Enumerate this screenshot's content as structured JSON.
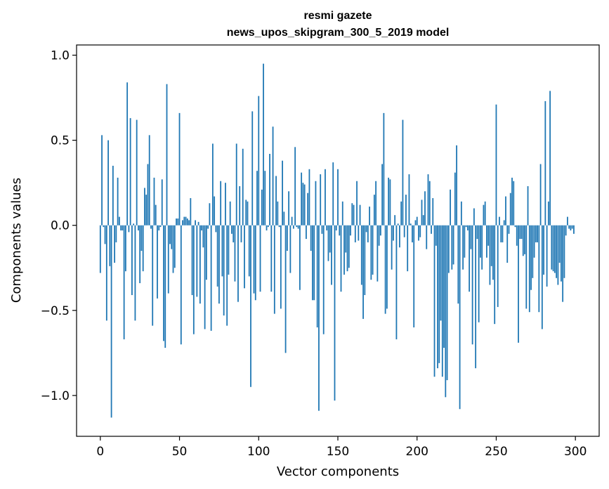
{
  "chart_data": {
    "type": "bar",
    "title": "resmi gazete",
    "subtitle": "news_upos_skipgram_300_5_2019 model",
    "xlabel": "Vector components",
    "ylabel": "Components values",
    "xlim": [
      -15,
      315
    ],
    "ylim": [
      -1.24,
      1.06
    ],
    "xticks": [
      0,
      50,
      100,
      150,
      200,
      250,
      300
    ],
    "xtick_labels": [
      "0",
      "50",
      "100",
      "150",
      "200",
      "250",
      "300"
    ],
    "yticks": [
      -1.0,
      -0.5,
      0.0,
      0.5,
      1.0
    ],
    "ytick_labels": [
      "−1.0",
      "−0.5",
      "0.0",
      "0.5",
      "1.0"
    ],
    "grid": false,
    "bar_color": "#1f77b4",
    "x": "0..299 (vector component index)",
    "values": [
      -0.28,
      0.53,
      -0.01,
      -0.11,
      -0.56,
      0.5,
      -0.24,
      -1.13,
      0.35,
      -0.22,
      -0.1,
      0.28,
      0.05,
      -0.03,
      -0.03,
      -0.67,
      -0.27,
      0.84,
      -0.04,
      0.63,
      -0.41,
      0.01,
      -0.56,
      0.62,
      -0.03,
      -0.34,
      -0.15,
      -0.27,
      0.22,
      0.18,
      0.36,
      0.53,
      -0.02,
      -0.59,
      0.28,
      0.12,
      -0.43,
      -0.03,
      -0.01,
      0.27,
      -0.68,
      -0.72,
      0.83,
      -0.4,
      -0.11,
      -0.14,
      -0.28,
      -0.25,
      0.04,
      0.04,
      0.66,
      -0.7,
      0.03,
      0.05,
      0.05,
      0.04,
      0.03,
      0.16,
      -0.41,
      -0.64,
      0.03,
      -0.42,
      0.02,
      -0.46,
      -0.03,
      -0.13,
      -0.61,
      -0.32,
      -0.02,
      0.13,
      -0.62,
      0.48,
      0.17,
      -0.04,
      -0.36,
      -0.46,
      0.26,
      -0.3,
      -0.53,
      0.25,
      -0.59,
      -0.29,
      0.14,
      -0.05,
      -0.1,
      -0.33,
      0.48,
      -0.45,
      0.23,
      -0.1,
      0.45,
      -0.37,
      0.15,
      0.14,
      -0.3,
      -0.95,
      0.67,
      -0.4,
      -0.44,
      0.32,
      0.76,
      -0.39,
      0.21,
      0.95,
      0.32,
      -0.03,
      -0.01,
      0.42,
      -0.39,
      0.58,
      -0.52,
      0.29,
      0.14,
      -0.01,
      -0.49,
      0.38,
      0.08,
      -0.75,
      -0.15,
      0.2,
      -0.28,
      0.05,
      -0.02,
      0.46,
      -0.01,
      -0.02,
      -0.38,
      0.31,
      0.25,
      0.24,
      -0.08,
      0.19,
      0.33,
      -0.15,
      -0.44,
      -0.44,
      0.26,
      -0.6,
      -1.09,
      0.3,
      -0.05,
      -0.64,
      0.33,
      -0.03,
      -0.21,
      -0.16,
      -0.35,
      0.37,
      -1.03,
      -0.03,
      0.33,
      -0.06,
      -0.39,
      0.14,
      -0.29,
      -0.16,
      -0.27,
      -0.25,
      -0.06,
      0.13,
      0.12,
      -0.1,
      0.26,
      -0.09,
      0.12,
      -0.35,
      -0.55,
      -0.41,
      -0.04,
      -0.1,
      0.11,
      -0.32,
      -0.29,
      0.18,
      0.26,
      -0.33,
      -0.12,
      -0.06,
      0.36,
      0.66,
      -0.52,
      -0.49,
      0.28,
      0.27,
      -0.26,
      -0.09,
      0.06,
      -0.67,
      0.01,
      -0.13,
      0.14,
      0.62,
      -0.07,
      0.18,
      -0.27,
      0.3,
      0.01,
      -0.1,
      -0.6,
      0.03,
      0.05,
      -0.09,
      -0.07,
      0.15,
      0.06,
      0.2,
      -0.14,
      0.3,
      0.26,
      -0.05,
      0.16,
      -0.89,
      -0.12,
      -0.84,
      -0.81,
      -0.56,
      -0.89,
      -0.72,
      -1.01,
      -0.91,
      -0.28,
      0.21,
      -0.26,
      -0.23,
      0.31,
      0.47,
      -0.46,
      -1.08,
      0.14,
      -0.26,
      -0.19,
      -0.01,
      -0.03,
      -0.39,
      -0.14,
      -0.7,
      0.1,
      -0.84,
      -0.08,
      -0.57,
      -0.19,
      -0.26,
      0.12,
      0.14,
      -0.19,
      -0.12,
      -0.35,
      -0.24,
      -0.32,
      -0.58,
      0.71,
      -0.48,
      0.05,
      -0.1,
      -0.1,
      0.03,
      0.17,
      -0.22,
      -0.05,
      0.19,
      0.28,
      0.26,
      -0.01,
      -0.12,
      -0.69,
      -0.08,
      -0.08,
      -0.18,
      -0.17,
      -0.49,
      0.23,
      -0.51,
      -0.38,
      -0.31,
      -0.19,
      -0.1,
      -0.1,
      -0.51,
      0.36,
      -0.61,
      -0.29,
      0.73,
      -0.36,
      0.14,
      0.79,
      -0.26,
      -0.27,
      -0.28,
      -0.31,
      -0.35,
      -0.22,
      -0.33,
      -0.45,
      -0.31,
      -0.06,
      0.05,
      -0.02,
      -0.03,
      -0.02,
      -0.05
    ]
  }
}
